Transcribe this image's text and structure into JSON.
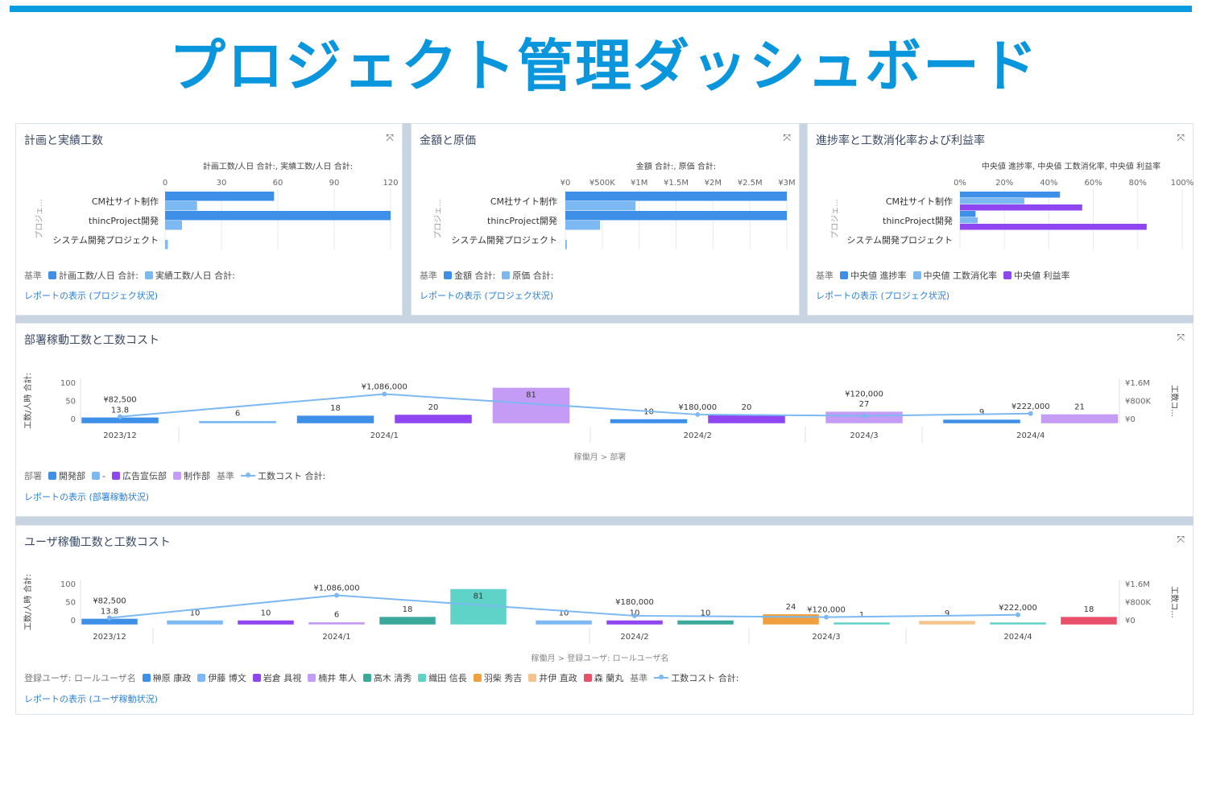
{
  "page_title": "プロジェクト管理ダッシュボード",
  "colors": {
    "accent": "#0a96dc",
    "blue": "#3d8fe8",
    "light_blue": "#7cb8f2",
    "purple": "#8f45f0",
    "light_purple": "#c49bf5",
    "teal_dark": "#3aa89a",
    "teal": "#5fd3c8",
    "orange": "#f0a040",
    "light_orange": "#f5c48c",
    "red": "#e8506a",
    "line": "#7cb8f2"
  },
  "cards": {
    "plan_actual": {
      "title": "計画と実績工数",
      "legend_label": "基準",
      "link": "レポートの表示 (プロジェク状況)"
    },
    "amount_cost": {
      "title": "金額と原価",
      "legend_label": "基準",
      "link": "レポートの表示 (プロジェク状況)"
    },
    "progress": {
      "title": "進捗率と工数消化率および利益率",
      "legend_label": "基準",
      "link": "レポートの表示 (プロジェク状況)"
    },
    "dept": {
      "title": "部署稼動工数と工数コスト",
      "legend_label": "部署",
      "legend_suffix": "基準",
      "link": "レポートの表示 (部署稼動状況)"
    },
    "user": {
      "title": "ユーザ稼働工数と工数コスト",
      "legend_label": "登録ユーザ: ロールユーザ名",
      "legend_suffix": "基準",
      "link": "レポートの表示 (ユーザ稼動状況)"
    }
  },
  "chart_data": [
    {
      "id": "plan_actual",
      "type": "bar",
      "orientation": "horizontal",
      "title": "計画と実績工数",
      "xlabel": "計画工数/人日 合計:, 実績工数/人日 合計:",
      "ylabel": "プロジェ...",
      "categories": [
        "CM社サイト制作",
        "thincProject開発",
        "システム開発プロジェクト"
      ],
      "xlim": [
        0,
        120
      ],
      "ticks": [
        "0",
        "30",
        "60",
        "90",
        "120"
      ],
      "series": [
        {
          "name": "計画工数/人日 合計:",
          "color": "#3d8fe8",
          "values": [
            58,
            120,
            0
          ]
        },
        {
          "name": "実績工数/人日 合計:",
          "color": "#7cb8f2",
          "values": [
            17,
            9,
            1.5
          ]
        }
      ]
    },
    {
      "id": "amount_cost",
      "type": "bar",
      "orientation": "horizontal",
      "title": "金額と原価",
      "xlabel": "金額 合計:, 原価 合計:",
      "ylabel": "プロジェ...",
      "categories": [
        "CM社サイト制作",
        "thincProject開発",
        "システム開発プロジェクト"
      ],
      "xlim": [
        0,
        3000000
      ],
      "ticks": [
        "¥0",
        "¥500K",
        "¥1M",
        "¥1.5M",
        "¥2M",
        "¥2.5M",
        "¥3M"
      ],
      "series": [
        {
          "name": "金額 合計:",
          "color": "#3d8fe8",
          "values": [
            3000000,
            3000000,
            0
          ]
        },
        {
          "name": "原価 合計:",
          "color": "#7cb8f2",
          "values": [
            950000,
            470000,
            20000
          ]
        }
      ]
    },
    {
      "id": "progress",
      "type": "bar",
      "orientation": "horizontal",
      "title": "進捗率と工数消化率および利益率",
      "xlabel": "中央値 進捗率, 中央値 工数消化率, 中央値 利益率",
      "ylabel": "プロジェ...",
      "categories": [
        "CM社サイト制作",
        "thincProject開発",
        "システム開発プロジェクト"
      ],
      "xlim": [
        0,
        100
      ],
      "ticks": [
        "0%",
        "20%",
        "40%",
        "60%",
        "80%",
        "100%"
      ],
      "series": [
        {
          "name": "中央値 進捗率",
          "color": "#3d8fe8",
          "values": [
            45,
            7,
            0
          ]
        },
        {
          "name": "中央値 工数消化率",
          "color": "#7cb8f2",
          "values": [
            29,
            8,
            0
          ]
        },
        {
          "name": "中央値 利益率",
          "color": "#8f45f0",
          "values": [
            55,
            84,
            0
          ]
        }
      ]
    },
    {
      "id": "dept",
      "type": "bar+line",
      "title": "部署稼動工数と工数コスト",
      "xlabel": "稼働月 > 部署",
      "ylabel": "工数/人時 合計:",
      "y2label": "工数コ...",
      "ylim": [
        0,
        100
      ],
      "yticks": [
        "0",
        "50",
        "100"
      ],
      "y2lim": [
        0,
        1600000
      ],
      "y2ticks": [
        "¥0",
        "¥800K",
        "¥1.6M"
      ],
      "months": [
        "2023/12",
        "2024/1",
        "2024/2",
        "2024/3",
        "2024/4"
      ],
      "legend": [
        {
          "name": "開発部",
          "color": "#3d8fe8"
        },
        {
          "name": "-",
          "color": "#7cb8f2"
        },
        {
          "name": "広告宣伝部",
          "color": "#8f45f0"
        },
        {
          "name": "制作部",
          "color": "#c49bf5"
        }
      ],
      "bars": [
        {
          "month": 0,
          "series": 0,
          "value": 13.8,
          "label": "13.8"
        },
        {
          "month": 1,
          "series": 1,
          "value": 6,
          "label": "6"
        },
        {
          "month": 1,
          "series": 0,
          "value": 18,
          "label": "18"
        },
        {
          "month": 1,
          "series": 2,
          "value": 20,
          "label": "20"
        },
        {
          "month": 1,
          "series": 3,
          "value": 81,
          "label": "81"
        },
        {
          "month": 2,
          "series": 0,
          "value": 10,
          "label": "10"
        },
        {
          "month": 2,
          "series": 2,
          "value": 20,
          "label": "20"
        },
        {
          "month": 3,
          "series": 3,
          "value": 27,
          "label": "27"
        },
        {
          "month": 4,
          "series": 0,
          "value": 9,
          "label": "9"
        },
        {
          "month": 4,
          "series": 3,
          "value": 21,
          "label": "21"
        }
      ],
      "line": {
        "name": "工数コスト 合計:",
        "values": [
          82500,
          1086000,
          180000,
          120000,
          222000
        ],
        "labels": [
          "¥82,500",
          "¥1,086,000",
          "¥180,000",
          "¥120,000",
          "¥222,000"
        ]
      }
    },
    {
      "id": "user",
      "type": "bar+line",
      "title": "ユーザ稼働工数と工数コスト",
      "xlabel": "稼働月 > 登録ユーザ: ロールユーザ名",
      "ylabel": "工数/人時 合計:",
      "y2label": "工数コ...",
      "ylim": [
        0,
        100
      ],
      "yticks": [
        "0",
        "50",
        "100"
      ],
      "y2lim": [
        0,
        1600000
      ],
      "y2ticks": [
        "¥0",
        "¥800K",
        "¥1.6M"
      ],
      "months": [
        "2023/12",
        "2024/1",
        "2024/2",
        "2024/3",
        "2024/4"
      ],
      "legend": [
        {
          "name": "榊原 康政",
          "color": "#3d8fe8"
        },
        {
          "name": "伊藤 博文",
          "color": "#7cb8f2"
        },
        {
          "name": "岩倉 具視",
          "color": "#8f45f0"
        },
        {
          "name": "楠井 隼人",
          "color": "#c49bf5"
        },
        {
          "name": "高木 清秀",
          "color": "#3aa89a"
        },
        {
          "name": "織田 信長",
          "color": "#5fd3c8"
        },
        {
          "name": "羽柴 秀吉",
          "color": "#f0a040"
        },
        {
          "name": "井伊 直政",
          "color": "#f5c48c"
        },
        {
          "name": "森 蘭丸",
          "color": "#e8506a"
        }
      ],
      "bars": [
        {
          "month": 0,
          "series": 0,
          "value": 13.8,
          "label": "13.8"
        },
        {
          "month": 1,
          "series": 1,
          "value": 10,
          "label": "10"
        },
        {
          "month": 1,
          "series": 2,
          "value": 10,
          "label": "10"
        },
        {
          "month": 1,
          "series": 3,
          "value": 6,
          "label": "6"
        },
        {
          "month": 1,
          "series": 4,
          "value": 18,
          "label": "18"
        },
        {
          "month": 1,
          "series": 5,
          "value": 81,
          "label": "81"
        },
        {
          "month": 2,
          "series": 1,
          "value": 10,
          "label": "10"
        },
        {
          "month": 2,
          "series": 2,
          "value": 10,
          "label": "10"
        },
        {
          "month": 2,
          "series": 4,
          "value": 10,
          "label": "10"
        },
        {
          "month": 3,
          "series": 6,
          "value": 24,
          "label": "24"
        },
        {
          "month": 3,
          "series": 5,
          "value": 1,
          "label": "1"
        },
        {
          "month": 4,
          "series": 7,
          "value": 9,
          "label": "9"
        },
        {
          "month": 4,
          "series": 5,
          "value": 1,
          "label": ""
        },
        {
          "month": 4,
          "series": 8,
          "value": 18,
          "label": "18"
        }
      ],
      "line": {
        "name": "工数コスト 合計:",
        "values": [
          82500,
          1086000,
          180000,
          120000,
          222000
        ],
        "labels": [
          "¥82,500",
          "¥1,086,000",
          "¥180,000",
          "¥120,000",
          "¥222,000"
        ]
      }
    }
  ]
}
